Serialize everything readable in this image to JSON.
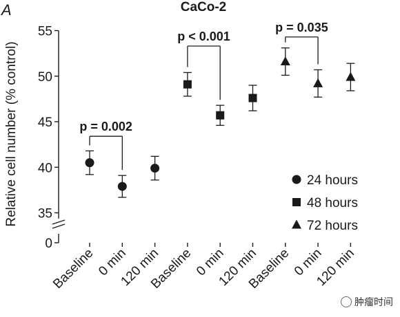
{
  "panel_label": "A",
  "watermark": "肿瘤时间",
  "colors": {
    "ink": "#1a1a1a"
  },
  "chart_data": {
    "type": "scatter",
    "title": "CaCo-2",
    "ylabel": "Relative cell number (% control)",
    "xlabel": "",
    "yticks": [
      "55",
      "50",
      "45",
      "40",
      "35",
      "0"
    ],
    "ytick_values": [
      55,
      50,
      45,
      40,
      35
    ],
    "ylim": [
      33.5,
      55
    ],
    "axis_break": true,
    "grid": false,
    "categories": [
      "Baseline",
      "0 min",
      "120 min",
      "Baseline",
      "0 min",
      "120 min",
      "Baseline",
      "0 min",
      "120 min"
    ],
    "series": [
      {
        "name": "24 hours",
        "marker": "circle",
        "x_index": [
          0,
          1,
          2
        ],
        "values": [
          40.5,
          37.9,
          39.9
        ],
        "errors": [
          1.3,
          1.2,
          1.3
        ]
      },
      {
        "name": "48 hours",
        "marker": "square",
        "x_index": [
          3,
          4,
          5
        ],
        "values": [
          49.1,
          45.7,
          47.6
        ],
        "errors": [
          1.3,
          1.1,
          1.4
        ]
      },
      {
        "name": "72 hours",
        "marker": "triangle",
        "x_index": [
          6,
          7,
          8
        ],
        "values": [
          51.6,
          49.2,
          49.9
        ],
        "errors": [
          1.5,
          1.5,
          1.5
        ]
      }
    ],
    "annotations": [
      {
        "text": "p = 0.002",
        "from_index": 0,
        "to_index": 1,
        "bracket_y": 43.4
      },
      {
        "text": "p < 0.001",
        "from_index": 3,
        "to_index": 4,
        "bracket_y": 53.3
      },
      {
        "text": "p = 0.035",
        "from_index": 6,
        "to_index": 7,
        "bracket_y": 54.3
      }
    ],
    "legend": {
      "placement": "right",
      "entries": [
        {
          "label": "24 hours",
          "marker": "circle"
        },
        {
          "label": "48 hours",
          "marker": "square"
        },
        {
          "label": "72 hours",
          "marker": "triangle"
        }
      ]
    }
  }
}
